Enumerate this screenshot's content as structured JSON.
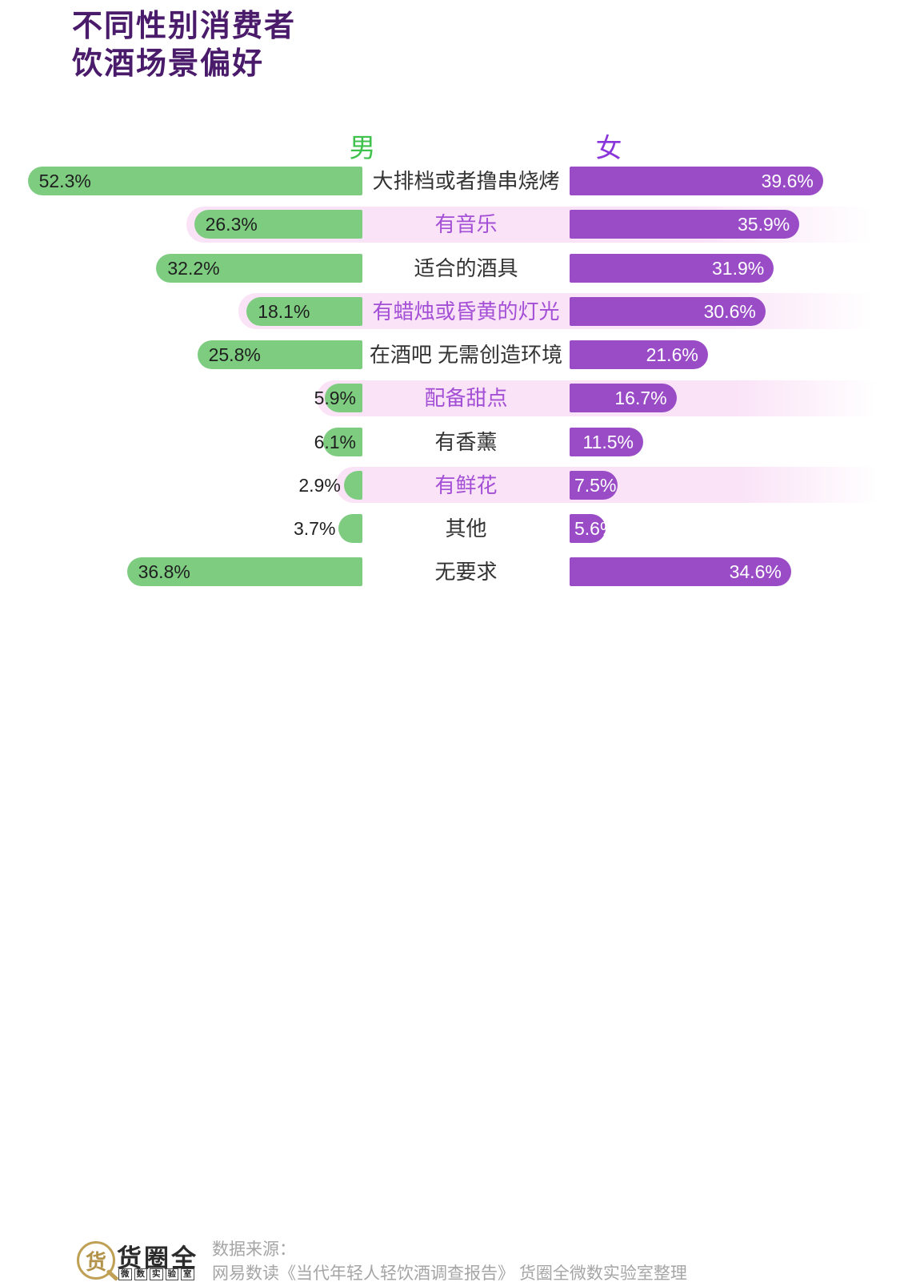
{
  "title": {
    "line1": "不同性别消费者",
    "line2": "饮酒场景偏好"
  },
  "legend": {
    "male": "男",
    "female": "女"
  },
  "chart_data": {
    "type": "bar",
    "orientation": "bidirectional-horizontal",
    "title": "不同性别消费者饮酒场景偏好",
    "value_suffix": "%",
    "categories": [
      "大排档或者撸串烧烤",
      "有音乐",
      "适合的酒具",
      "有蜡烛或昏黄的灯光",
      "在酒吧 无需创造环境",
      "配备甜点",
      "有香薰",
      "有鲜花",
      "其他",
      "无要求"
    ],
    "highlighted_rows": [
      1,
      3,
      5,
      7
    ],
    "series": [
      {
        "name": "男",
        "color": "#7dcc80",
        "values": [
          52.3,
          26.3,
          32.2,
          18.1,
          25.8,
          5.9,
          6.1,
          2.9,
          3.7,
          36.8
        ]
      },
      {
        "name": "女",
        "color": "#9a4cc7",
        "values": [
          39.6,
          35.9,
          31.9,
          30.6,
          21.6,
          16.7,
          11.5,
          7.5,
          5.6,
          34.6
        ]
      }
    ],
    "axis_range_pct": [
      0,
      52.3
    ],
    "legend_position": "top",
    "grid": false
  },
  "colors": {
    "title": "#4a1a6b",
    "male_header": "#3ec24b",
    "female_header": "#8a35d9",
    "highlight_band": "#fae3f7",
    "highlight_label": "#a34fd6",
    "category_label": "#333333",
    "male_value_text": "#1f1f1f",
    "female_value_text": "#ffffff"
  },
  "footer": {
    "logo": {
      "icon_char": "货",
      "name": "货圈全",
      "subtitle": "微数实验室"
    },
    "source_line1": "数据来源：",
    "source_line2": "网易数读《当代年轻人轻饮酒调查报告》 货圈全微数实验室整理"
  }
}
